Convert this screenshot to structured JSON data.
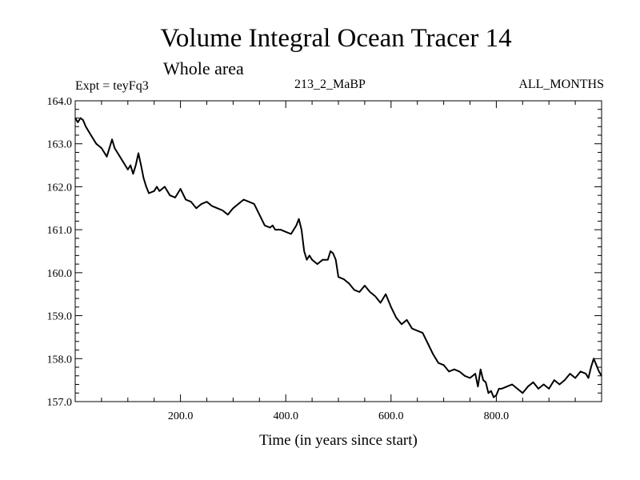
{
  "header": {
    "title": "Volume Integral Ocean Tracer 14",
    "subtitle": "Whole area",
    "expt_label": "Expt = teyFq3",
    "run_label": "213_2_MaBP",
    "months_label": "ALL_MONTHS"
  },
  "chart_data": {
    "type": "line",
    "title": "Volume Integral Ocean Tracer 14",
    "subtitle": "Whole area",
    "xlabel": "Time (in years since start)",
    "ylabel": "",
    "xlim": [
      0,
      1000
    ],
    "ylim": [
      157.0,
      164.0
    ],
    "x_ticks": [
      200,
      400,
      600,
      800
    ],
    "x_tick_labels": [
      "200.0",
      "400.0",
      "600.0",
      "800.0"
    ],
    "y_ticks": [
      157,
      158,
      159,
      160,
      161,
      162,
      163,
      164
    ],
    "y_tick_labels": [
      "157.0",
      "158.0",
      "159.0",
      "160.0",
      "161.0",
      "162.0",
      "163.0",
      "164.0"
    ],
    "grid": false,
    "line_color": "#000000",
    "series": [
      {
        "x": [
          0,
          5,
          10,
          15,
          20,
          30,
          40,
          50,
          60,
          65,
          70,
          75,
          80,
          90,
          100,
          105,
          110,
          115,
          120,
          125,
          130,
          135,
          140,
          150,
          155,
          160,
          170,
          180,
          190,
          200,
          210,
          220,
          230,
          240,
          250,
          260,
          270,
          280,
          290,
          300,
          310,
          320,
          330,
          340,
          350,
          360,
          370,
          375,
          380,
          390,
          400,
          410,
          420,
          425,
          430,
          435,
          440,
          445,
          450,
          460,
          470,
          480,
          485,
          490,
          495,
          500,
          510,
          520,
          530,
          540,
          550,
          560,
          570,
          580,
          590,
          600,
          610,
          620,
          630,
          640,
          650,
          660,
          670,
          680,
          690,
          700,
          710,
          720,
          730,
          740,
          750,
          760,
          765,
          770,
          775,
          780,
          785,
          790,
          795,
          800,
          805,
          810,
          820,
          830,
          840,
          850,
          860,
          870,
          880,
          890,
          900,
          910,
          920,
          930,
          940,
          950,
          960,
          970,
          975,
          980,
          985,
          990,
          995,
          1000
        ],
        "values": [
          163.6,
          163.5,
          163.6,
          163.55,
          163.4,
          163.2,
          163.0,
          162.9,
          162.7,
          162.9,
          163.1,
          162.9,
          162.8,
          162.6,
          162.4,
          162.5,
          162.3,
          162.5,
          162.78,
          162.5,
          162.2,
          162.0,
          161.85,
          161.9,
          162.0,
          161.9,
          162.0,
          161.8,
          161.75,
          161.95,
          161.7,
          161.65,
          161.5,
          161.6,
          161.65,
          161.55,
          161.5,
          161.45,
          161.35,
          161.5,
          161.6,
          161.7,
          161.65,
          161.6,
          161.35,
          161.1,
          161.05,
          161.1,
          161.0,
          161.0,
          160.95,
          160.9,
          161.1,
          161.25,
          161.0,
          160.5,
          160.3,
          160.4,
          160.3,
          160.2,
          160.3,
          160.3,
          160.5,
          160.45,
          160.3,
          159.9,
          159.85,
          159.75,
          159.6,
          159.55,
          159.7,
          159.55,
          159.45,
          159.3,
          159.5,
          159.2,
          158.95,
          158.8,
          158.9,
          158.7,
          158.65,
          158.6,
          158.35,
          158.1,
          157.9,
          157.85,
          157.7,
          157.75,
          157.7,
          157.6,
          157.55,
          157.65,
          157.35,
          157.75,
          157.5,
          157.45,
          157.2,
          157.25,
          157.1,
          157.15,
          157.3,
          157.3,
          157.35,
          157.4,
          157.3,
          157.2,
          157.35,
          157.45,
          157.3,
          157.4,
          157.3,
          157.5,
          157.4,
          157.5,
          157.65,
          157.55,
          157.7,
          157.65,
          157.55,
          157.8,
          158.0,
          157.85,
          157.7,
          157.6
        ]
      }
    ]
  }
}
